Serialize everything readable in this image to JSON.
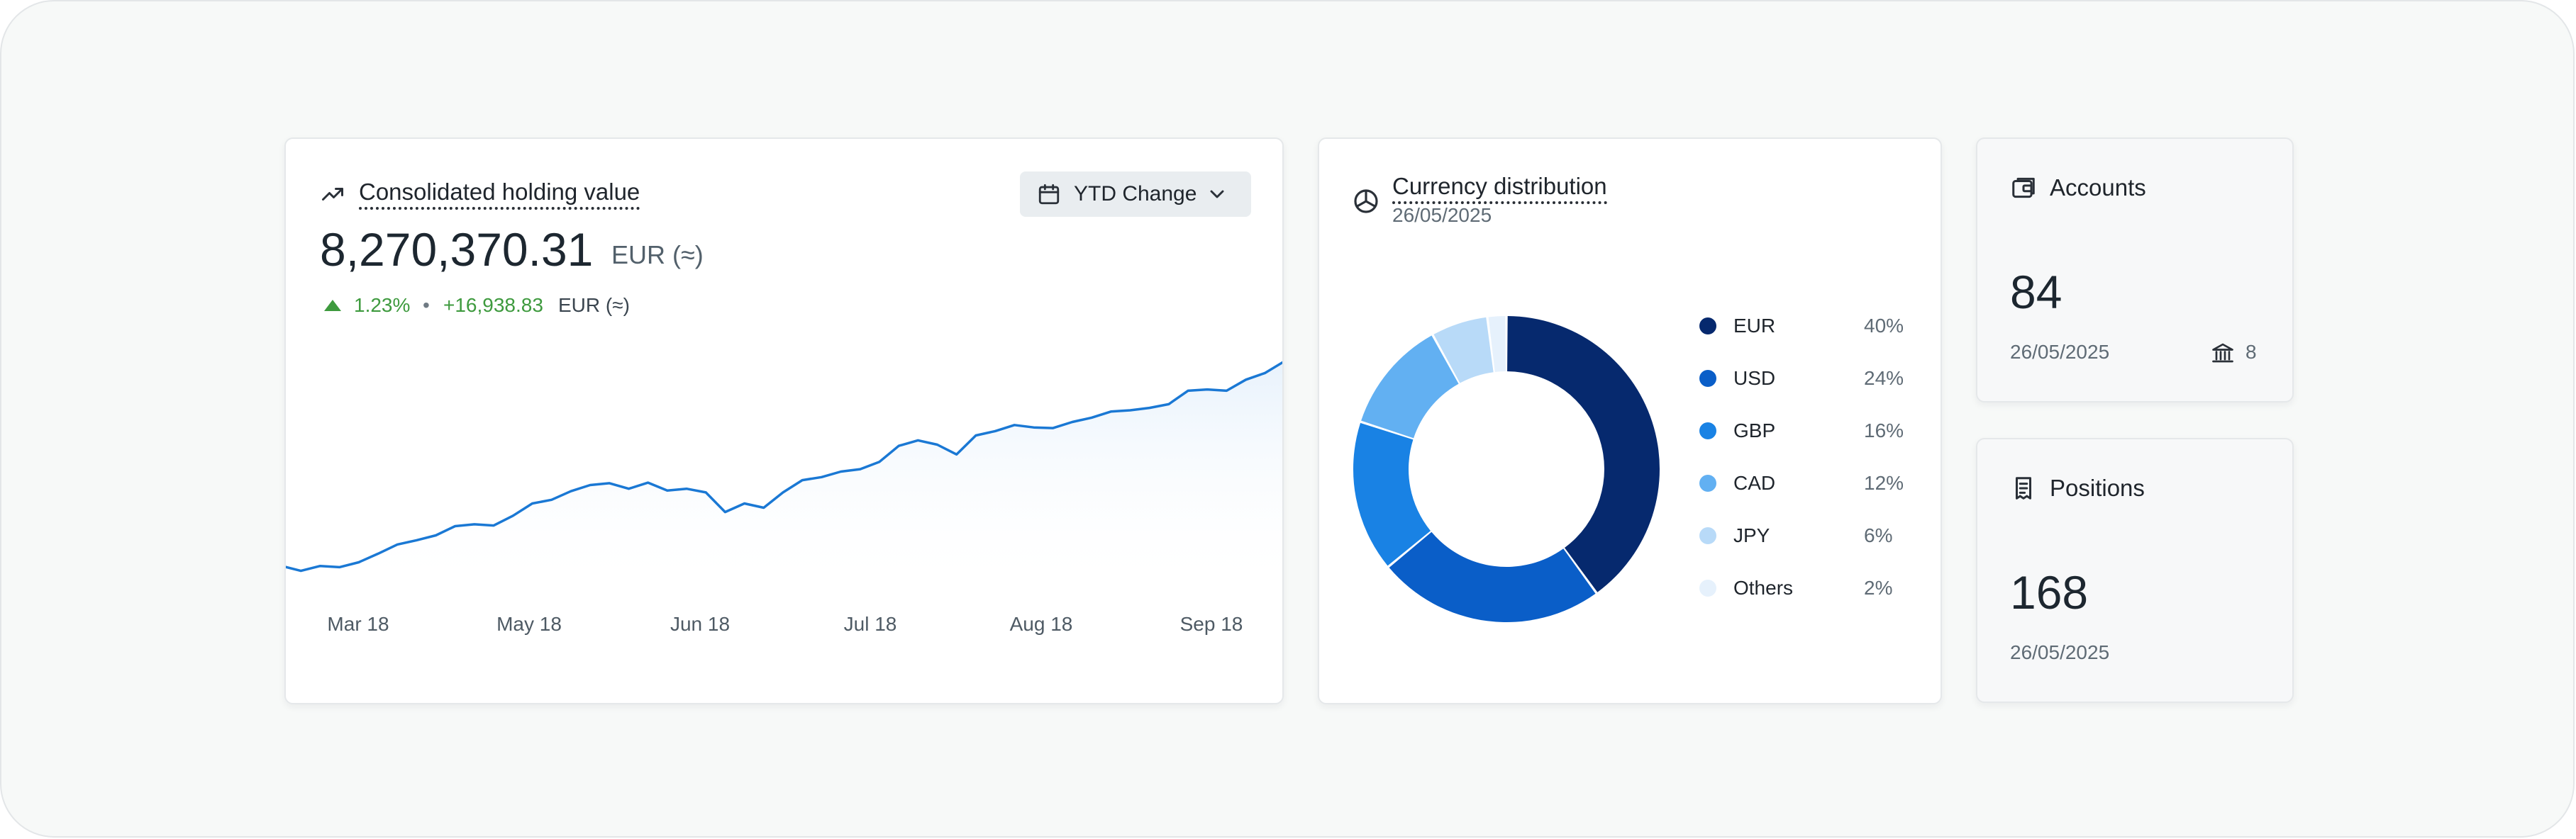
{
  "holding": {
    "title": "Consolidated holding value",
    "period_button": "YTD Change",
    "value": "8,270,370.31",
    "currency": "EUR (≈)",
    "change_pct": "1.23%",
    "separator": "•",
    "change_abs": "+16,938.83",
    "change_currency": "EUR (≈)",
    "chart_data": {
      "type": "area",
      "x_tick_labels": [
        "Mar 18",
        "May 18",
        "Jun 18",
        "Jul 18",
        "Aug 18",
        "Sep 18"
      ],
      "values": [
        8.07,
        8.062,
        8.07,
        8.068,
        8.076,
        8.09,
        8.105,
        8.112,
        8.12,
        8.135,
        8.138,
        8.136,
        8.152,
        8.172,
        8.178,
        8.192,
        8.202,
        8.205,
        8.196,
        8.206,
        8.193,
        8.196,
        8.19,
        8.158,
        8.172,
        8.165,
        8.19,
        8.21,
        8.215,
        8.224,
        8.228,
        8.24,
        8.266,
        8.275,
        8.268,
        8.252,
        8.283,
        8.29,
        8.3,
        8.296,
        8.295,
        8.305,
        8.312,
        8.322,
        8.324,
        8.328,
        8.334,
        8.356,
        8.358,
        8.356,
        8.374,
        8.385,
        8.404
      ],
      "color": "#1a78d4",
      "fill": "#e8f2fc",
      "grid": false
    }
  },
  "currency": {
    "title": "Currency distribution",
    "date": "26/05/2025",
    "chart_data": {
      "type": "pie",
      "donut": true,
      "labels": [
        "EUR",
        "USD",
        "GBP",
        "CAD",
        "JPY",
        "Others"
      ],
      "values": [
        40,
        24,
        16,
        12,
        6,
        2
      ],
      "value_labels": [
        "40%",
        "24%",
        "16%",
        "12%",
        "6%",
        "2%"
      ],
      "colors": [
        "#06296e",
        "#0a5ec8",
        "#1982e4",
        "#62b0f2",
        "#b8daf8",
        "#e6f1fc"
      ]
    }
  },
  "accounts": {
    "title": "Accounts",
    "count": "84",
    "date": "26/05/2025",
    "banks": "8"
  },
  "positions": {
    "title": "Positions",
    "count": "168",
    "date": "26/05/2025"
  }
}
